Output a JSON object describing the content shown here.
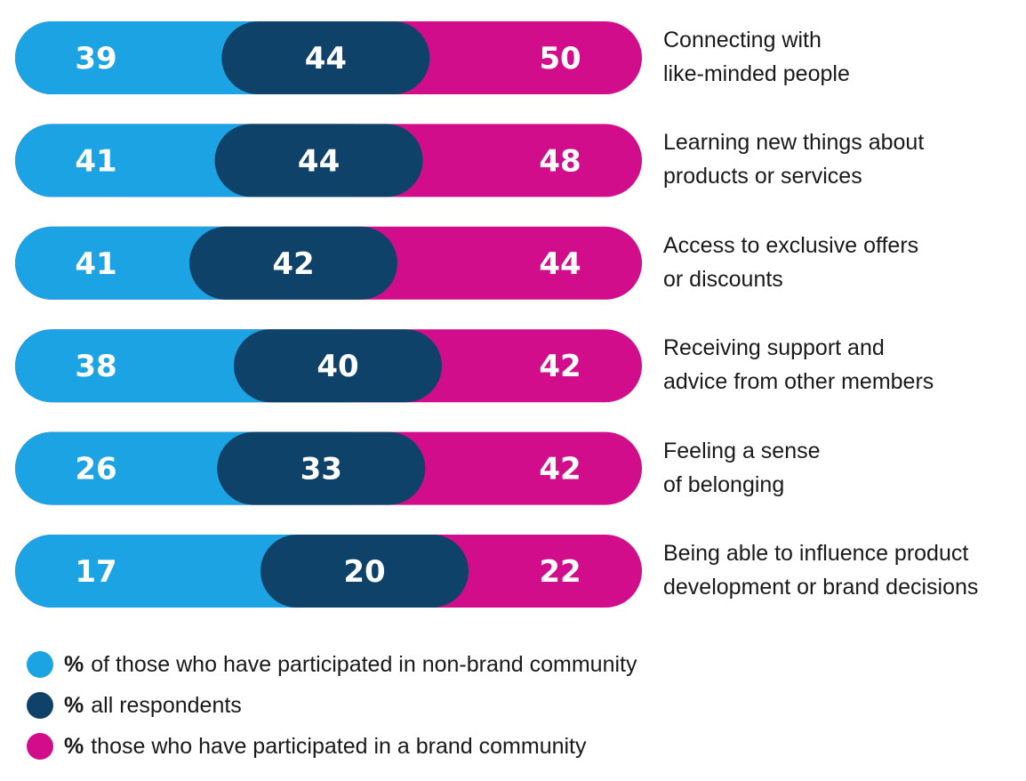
{
  "chart_data": {
    "type": "bar",
    "categories": [
      [
        "Connecting with",
        "like-minded people"
      ],
      [
        "Learning new things about",
        "products or services"
      ],
      [
        "Access to exclusive offers",
        "or discounts"
      ],
      [
        "Receiving support and",
        "advice from other members"
      ],
      [
        "Feeling a sense",
        "of belonging"
      ],
      [
        "Being able to influence product",
        "development or brand decisions"
      ]
    ],
    "series": [
      {
        "name": "of those who have participated in non-brand community",
        "color": "#1ba3e3",
        "values": [
          39,
          41,
          41,
          38,
          26,
          17
        ]
      },
      {
        "name": "all respondents",
        "color": "#0e4269",
        "values": [
          44,
          44,
          42,
          40,
          33,
          20
        ]
      },
      {
        "name": "those who have participated in a brand community",
        "color": "#d20d8c",
        "values": [
          50,
          48,
          44,
          42,
          42,
          22
        ]
      }
    ],
    "legend": {
      "position": "bottom-left",
      "prefix": "%"
    }
  }
}
